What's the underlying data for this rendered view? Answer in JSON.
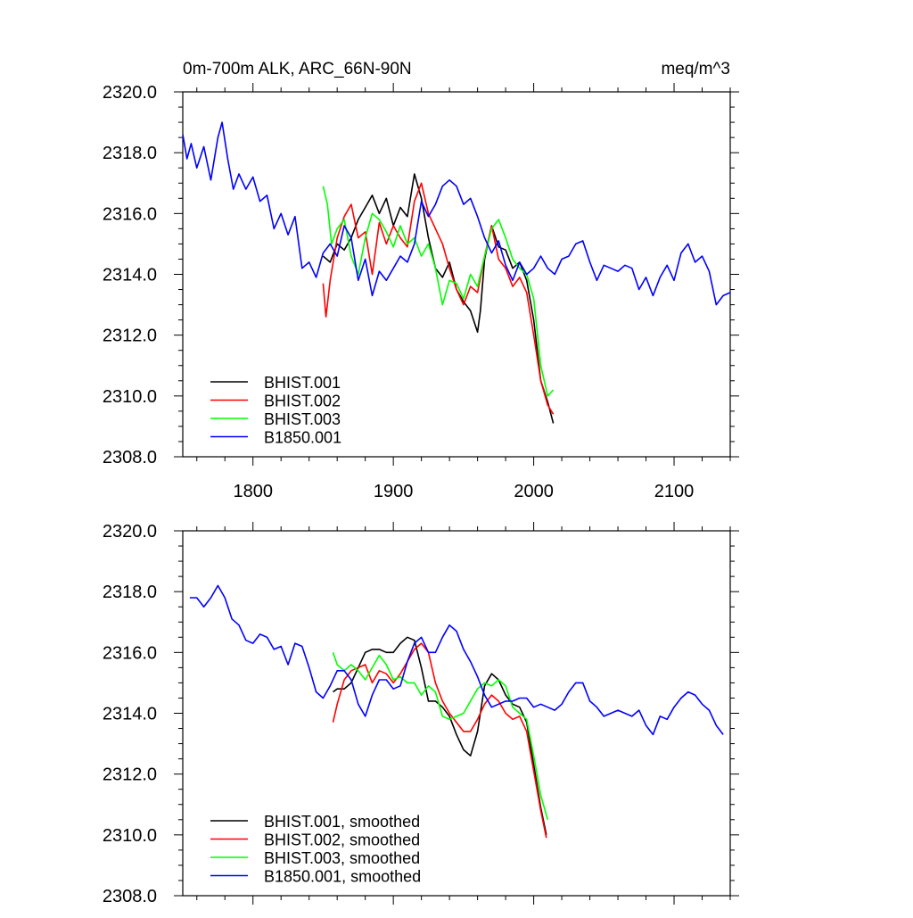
{
  "chart_data": [
    {
      "type": "line",
      "title_left": "0m-700m ALK, ARC_66N-90N",
      "title_right": "meq/m^3",
      "xlim": [
        1750,
        2140
      ],
      "ylim": [
        2308,
        2320
      ],
      "x_ticks": [
        1800,
        1900,
        2000,
        2100
      ],
      "x_tick_labels": [
        "1800",
        "1900",
        "2000",
        "2100"
      ],
      "y_ticks": [
        2308,
        2310,
        2312,
        2314,
        2316,
        2318,
        2320
      ],
      "y_tick_labels": [
        "2308.0",
        "2310.0",
        "2312.0",
        "2314.0",
        "2316.0",
        "2318.0",
        "2320.0"
      ],
      "grid": false,
      "legend_position": "bottom-left",
      "series": [
        {
          "name": "BHIST.001",
          "color": "#000000",
          "x": [
            1850,
            1855,
            1860,
            1865,
            1870,
            1875,
            1880,
            1885,
            1890,
            1895,
            1900,
            1905,
            1910,
            1915,
            1920,
            1925,
            1930,
            1935,
            1940,
            1945,
            1950,
            1955,
            1960,
            1962,
            1965,
            1970,
            1975,
            1980,
            1985,
            1990,
            1995,
            2000,
            2005,
            2010,
            2014
          ],
          "y": [
            2314.6,
            2314.4,
            2315.0,
            2314.8,
            2315.2,
            2315.8,
            2316.2,
            2316.6,
            2316.0,
            2316.5,
            2315.6,
            2316.2,
            2315.9,
            2317.3,
            2316.5,
            2315.2,
            2314.2,
            2313.9,
            2314.4,
            2313.5,
            2313.1,
            2312.8,
            2312.1,
            2312.8,
            2314.5,
            2315.6,
            2314.9,
            2314.8,
            2314.2,
            2314.4,
            2313.8,
            2312.5,
            2310.5,
            2309.8,
            2309.1
          ]
        },
        {
          "name": "BHIST.002",
          "color": "#ff0000",
          "x": [
            1850,
            1852,
            1855,
            1860,
            1865,
            1870,
            1875,
            1880,
            1885,
            1890,
            1895,
            1900,
            1905,
            1910,
            1915,
            1920,
            1925,
            1930,
            1935,
            1940,
            1945,
            1950,
            1955,
            1960,
            1965,
            1970,
            1975,
            1980,
            1985,
            1990,
            1995,
            2000,
            2005,
            2010,
            2014
          ],
          "y": [
            2313.7,
            2312.6,
            2313.8,
            2315.2,
            2315.9,
            2316.3,
            2315.2,
            2315.4,
            2314.0,
            2315.7,
            2315.0,
            2315.6,
            2315.2,
            2314.9,
            2316.4,
            2317.0,
            2316.0,
            2315.5,
            2315.0,
            2314.2,
            2313.5,
            2313.0,
            2313.6,
            2313.4,
            2314.6,
            2315.6,
            2314.5,
            2314.2,
            2313.6,
            2313.9,
            2313.4,
            2312.0,
            2310.5,
            2309.7,
            2309.4
          ]
        },
        {
          "name": "BHIST.003",
          "color": "#00ff00",
          "x": [
            1850,
            1853,
            1856,
            1860,
            1865,
            1870,
            1875,
            1880,
            1885,
            1890,
            1895,
            1900,
            1905,
            1910,
            1915,
            1920,
            1925,
            1930,
            1935,
            1940,
            1945,
            1950,
            1955,
            1960,
            1965,
            1970,
            1975,
            1980,
            1985,
            1990,
            1995,
            2000,
            2005,
            2010,
            2014
          ],
          "y": [
            2316.9,
            2316.3,
            2315.0,
            2315.5,
            2315.8,
            2314.6,
            2314.0,
            2315.2,
            2316.0,
            2315.8,
            2315.4,
            2314.9,
            2315.6,
            2315.0,
            2315.2,
            2314.6,
            2315.0,
            2314.2,
            2313.0,
            2313.8,
            2313.7,
            2313.2,
            2314.0,
            2313.6,
            2314.6,
            2315.5,
            2315.8,
            2315.2,
            2314.5,
            2314.2,
            2314.0,
            2313.2,
            2311.0,
            2310.0,
            2310.2
          ]
        },
        {
          "name": "B1850.001",
          "color": "#0000ff",
          "x": [
            1750,
            1753,
            1756,
            1760,
            1765,
            1770,
            1775,
            1778,
            1782,
            1786,
            1790,
            1795,
            1800,
            1805,
            1810,
            1815,
            1820,
            1825,
            1830,
            1835,
            1840,
            1845,
            1850,
            1855,
            1860,
            1865,
            1870,
            1875,
            1880,
            1885,
            1890,
            1895,
            1900,
            1905,
            1910,
            1915,
            1920,
            1925,
            1930,
            1935,
            1940,
            1945,
            1950,
            1955,
            1960,
            1965,
            1970,
            1975,
            1980,
            1985,
            1990,
            1995,
            2000,
            2005,
            2010,
            2015,
            2020,
            2025,
            2030,
            2035,
            2040,
            2045,
            2050,
            2055,
            2060,
            2065,
            2070,
            2075,
            2080,
            2085,
            2090,
            2095,
            2100,
            2105,
            2110,
            2115,
            2120,
            2125,
            2130,
            2135,
            2140
          ],
          "y": [
            2318.6,
            2317.8,
            2318.3,
            2317.5,
            2318.2,
            2317.1,
            2318.5,
            2319.0,
            2317.8,
            2316.8,
            2317.3,
            2316.8,
            2317.2,
            2316.4,
            2316.6,
            2315.5,
            2316.0,
            2315.3,
            2315.9,
            2314.2,
            2314.4,
            2313.9,
            2314.7,
            2315.0,
            2314.6,
            2315.6,
            2315.2,
            2313.8,
            2314.5,
            2313.3,
            2314.1,
            2313.8,
            2314.2,
            2314.6,
            2314.4,
            2315.0,
            2316.4,
            2315.9,
            2316.3,
            2316.9,
            2317.1,
            2316.9,
            2316.3,
            2316.5,
            2315.9,
            2315.2,
            2314.7,
            2315.1,
            2314.3,
            2313.8,
            2314.4,
            2314.0,
            2314.2,
            2314.6,
            2314.2,
            2314.0,
            2314.5,
            2314.6,
            2315.0,
            2315.1,
            2314.4,
            2313.8,
            2314.3,
            2314.2,
            2314.1,
            2314.3,
            2314.2,
            2313.5,
            2313.9,
            2313.3,
            2313.9,
            2314.3,
            2313.8,
            2314.7,
            2315.0,
            2314.4,
            2314.6,
            2314.1,
            2313.0,
            2313.3,
            2313.4
          ]
        }
      ]
    },
    {
      "type": "line",
      "xlim": [
        1750,
        2140
      ],
      "ylim": [
        2308,
        2320
      ],
      "x_ticks": [
        1800,
        1900,
        2000,
        2100
      ],
      "y_ticks": [
        2308,
        2310,
        2312,
        2314,
        2316,
        2318,
        2320
      ],
      "y_tick_labels": [
        "2308.0",
        "2310.0",
        "2312.0",
        "2314.0",
        "2316.0",
        "2318.0",
        "2320.0"
      ],
      "grid": false,
      "legend_position": "bottom-left",
      "series": [
        {
          "name": "BHIST.001, smoothed",
          "color": "#000000",
          "x": [
            1857,
            1860,
            1865,
            1870,
            1875,
            1880,
            1885,
            1890,
            1895,
            1900,
            1905,
            1910,
            1915,
            1920,
            1925,
            1930,
            1935,
            1940,
            1945,
            1950,
            1955,
            1960,
            1965,
            1970,
            1975,
            1980,
            1985,
            1990,
            1995,
            2000,
            2005,
            2009
          ],
          "y": [
            2314.7,
            2314.8,
            2314.8,
            2315.0,
            2315.5,
            2316.0,
            2316.1,
            2316.1,
            2316.0,
            2316.0,
            2316.3,
            2316.5,
            2316.4,
            2315.5,
            2314.4,
            2314.4,
            2314.2,
            2313.9,
            2313.3,
            2312.8,
            2312.6,
            2313.4,
            2314.9,
            2315.3,
            2315.1,
            2314.6,
            2314.3,
            2314.2,
            2313.7,
            2312.3,
            2310.9,
            2310.0
          ]
        },
        {
          "name": "BHIST.002, smoothed",
          "color": "#ff0000",
          "x": [
            1857,
            1860,
            1865,
            1870,
            1875,
            1880,
            1885,
            1890,
            1895,
            1900,
            1905,
            1910,
            1915,
            1920,
            1925,
            1930,
            1935,
            1940,
            1945,
            1950,
            1955,
            1960,
            1965,
            1970,
            1975,
            1980,
            1985,
            1990,
            1995,
            2000,
            2005,
            2009
          ],
          "y": [
            2313.7,
            2314.3,
            2315.1,
            2315.4,
            2315.5,
            2315.6,
            2315.0,
            2315.4,
            2315.3,
            2315.0,
            2315.3,
            2315.7,
            2316.1,
            2316.3,
            2316.0,
            2315.0,
            2314.4,
            2314.0,
            2313.7,
            2313.4,
            2313.4,
            2313.8,
            2314.3,
            2314.6,
            2314.4,
            2314.0,
            2313.8,
            2313.9,
            2313.4,
            2312.1,
            2310.8,
            2309.9
          ]
        },
        {
          "name": "BHIST.003, smoothed",
          "color": "#00ff00",
          "x": [
            1857,
            1860,
            1865,
            1870,
            1875,
            1880,
            1885,
            1890,
            1895,
            1900,
            1905,
            1910,
            1915,
            1920,
            1925,
            1930,
            1935,
            1940,
            1945,
            1950,
            1955,
            1960,
            1965,
            1970,
            1975,
            1980,
            1985,
            1990,
            1995,
            2000,
            2005,
            2010
          ],
          "y": [
            2316.0,
            2315.6,
            2315.4,
            2315.6,
            2315.4,
            2315.1,
            2315.5,
            2315.9,
            2315.6,
            2315.1,
            2315.2,
            2315.0,
            2315.0,
            2314.6,
            2314.9,
            2314.7,
            2313.9,
            2313.8,
            2313.9,
            2314.0,
            2314.4,
            2314.8,
            2315.0,
            2314.9,
            2315.1,
            2314.9,
            2314.2,
            2314.0,
            2313.8,
            2312.6,
            2311.3,
            2310.5
          ]
        },
        {
          "name": "B1850.001, smoothed",
          "color": "#0000ff",
          "x": [
            1755,
            1760,
            1765,
            1770,
            1775,
            1780,
            1785,
            1790,
            1795,
            1800,
            1805,
            1810,
            1815,
            1820,
            1825,
            1830,
            1835,
            1840,
            1845,
            1850,
            1855,
            1860,
            1865,
            1870,
            1875,
            1880,
            1885,
            1890,
            1895,
            1900,
            1905,
            1910,
            1915,
            1920,
            1925,
            1930,
            1935,
            1940,
            1945,
            1950,
            1955,
            1960,
            1965,
            1970,
            1975,
            1980,
            1985,
            1990,
            1995,
            2000,
            2005,
            2010,
            2015,
            2020,
            2025,
            2030,
            2035,
            2040,
            2045,
            2050,
            2055,
            2060,
            2065,
            2070,
            2075,
            2080,
            2085,
            2090,
            2095,
            2100,
            2105,
            2110,
            2115,
            2120,
            2125,
            2130,
            2135
          ],
          "y": [
            2317.8,
            2317.8,
            2317.5,
            2317.8,
            2318.2,
            2317.8,
            2317.1,
            2316.9,
            2316.4,
            2316.3,
            2316.6,
            2316.5,
            2316.1,
            2316.2,
            2315.6,
            2316.3,
            2316.2,
            2315.5,
            2314.7,
            2314.5,
            2314.9,
            2315.4,
            2315.4,
            2315.1,
            2314.3,
            2313.9,
            2314.6,
            2315.1,
            2315.1,
            2314.8,
            2314.9,
            2315.7,
            2316.3,
            2316.5,
            2316.0,
            2316.0,
            2316.5,
            2316.9,
            2316.7,
            2316.1,
            2315.7,
            2315.2,
            2314.6,
            2314.2,
            2314.3,
            2314.4,
            2314.4,
            2314.5,
            2314.5,
            2314.2,
            2314.3,
            2314.2,
            2314.1,
            2314.3,
            2314.7,
            2315.0,
            2315.0,
            2314.4,
            2314.2,
            2313.9,
            2314.0,
            2314.1,
            2314.0,
            2313.9,
            2314.1,
            2313.6,
            2313.3,
            2313.9,
            2313.8,
            2314.2,
            2314.5,
            2314.7,
            2314.6,
            2314.3,
            2314.1,
            2313.6,
            2313.3
          ]
        }
      ]
    }
  ]
}
